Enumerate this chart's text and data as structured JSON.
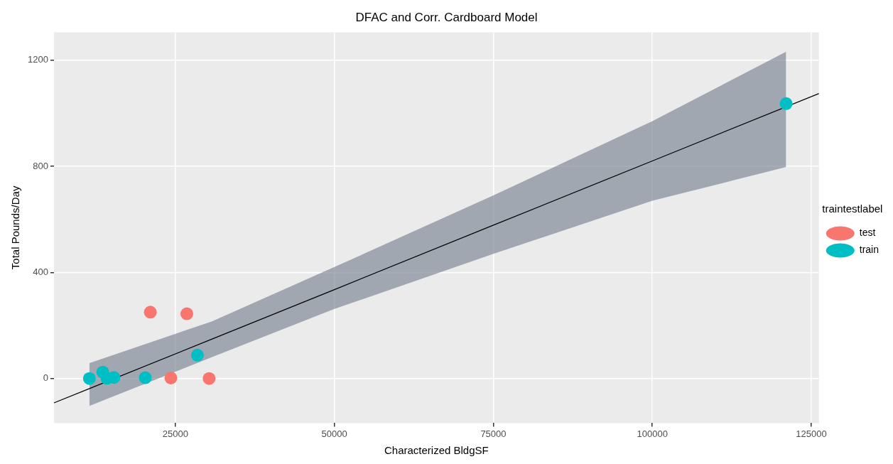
{
  "chart_data": {
    "type": "scatter",
    "title": "DFAC and Corr. Cardboard Model",
    "xlabel": "Characterized BldgSF",
    "ylabel": "Total Pounds/Day",
    "legend_title": "traintestlabel",
    "xlim": [
      5900,
      126200
    ],
    "xticks": [
      25000,
      50000,
      75000,
      100000,
      125000
    ],
    "ylim": [
      -168,
      1305
    ],
    "yticks": [
      0,
      400,
      800,
      1200
    ],
    "grid": true,
    "legend": "right",
    "marker": "circle",
    "series": [
      {
        "name": "test",
        "color": "#f8766d",
        "x": [
          21060,
          26800,
          24290,
          30300
        ],
        "values": [
          250,
          244,
          2,
          0
        ]
      },
      {
        "name": "train",
        "color": "#00bfc4",
        "x": [
          11480,
          13580,
          14240,
          15330,
          20260,
          28460,
          121040
        ],
        "values": [
          0,
          24,
          1,
          4,
          3,
          88,
          1036
        ]
      },
      {
        "type": "line",
        "marker": "none",
        "color": "#000000",
        "x": [
          5900,
          11480,
          30700,
          50000,
          75000,
          100000,
          121040,
          126200
        ],
        "values": [
          -92,
          -38,
          148,
          335,
          578,
          820,
          null,
          1074
        ],
        "lower": [
          null,
          -103,
          80,
          262,
          470,
          670,
          797,
          null
        ],
        "upper": [
          null,
          58,
          215,
          420,
          690,
          970,
          1232,
          null
        ]
      }
    ]
  }
}
